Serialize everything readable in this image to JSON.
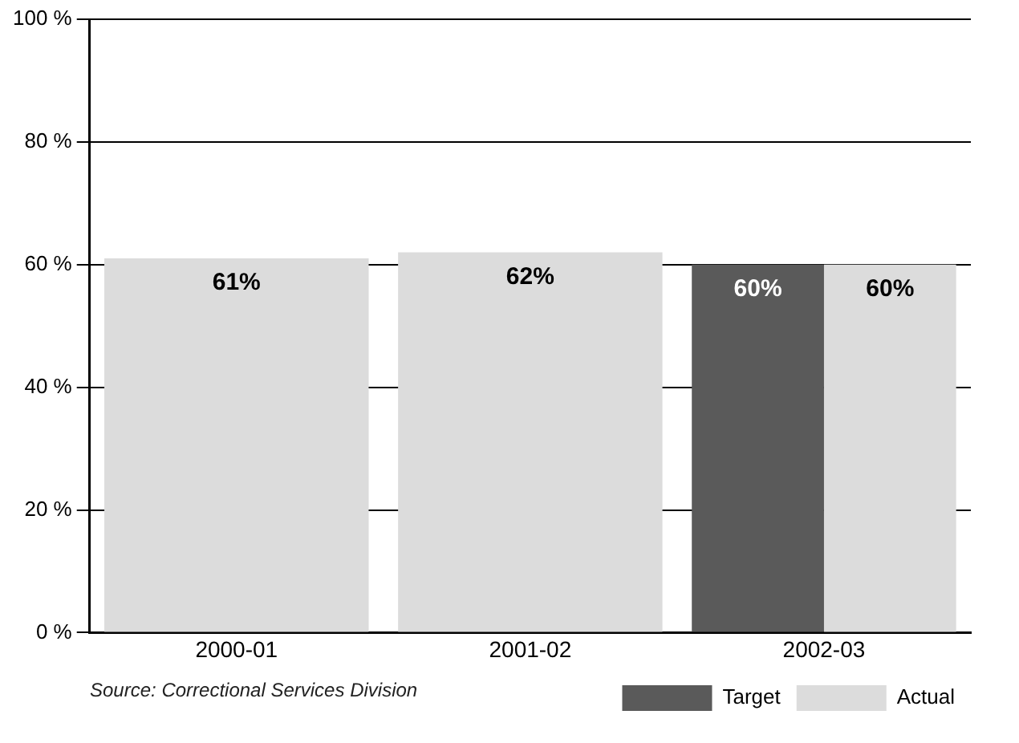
{
  "chart_data": {
    "type": "bar",
    "categories": [
      "2000-01",
      "2001-02",
      "2002-03"
    ],
    "series": [
      {
        "name": "Target",
        "color": "#5a5a5a",
        "values": [
          null,
          null,
          60
        ],
        "value_labels": [
          null,
          null,
          "60%"
        ]
      },
      {
        "name": "Actual",
        "color": "#dcdcdc",
        "values": [
          61,
          62,
          60
        ],
        "value_labels": [
          "61%",
          "62%",
          "60%"
        ]
      }
    ],
    "ylim": [
      0,
      100
    ],
    "yticks": [
      {
        "value": 0,
        "label": "0 %"
      },
      {
        "value": 20,
        "label": "20 %"
      },
      {
        "value": 40,
        "label": "40 %"
      },
      {
        "value": 60,
        "label": "60 %"
      },
      {
        "value": 80,
        "label": "80 %"
      },
      {
        "value": 100,
        "label": "100 %"
      }
    ],
    "grid": "y",
    "legend": "bottom right",
    "annotations": [
      "Source:  Correctional Services Division"
    ]
  }
}
